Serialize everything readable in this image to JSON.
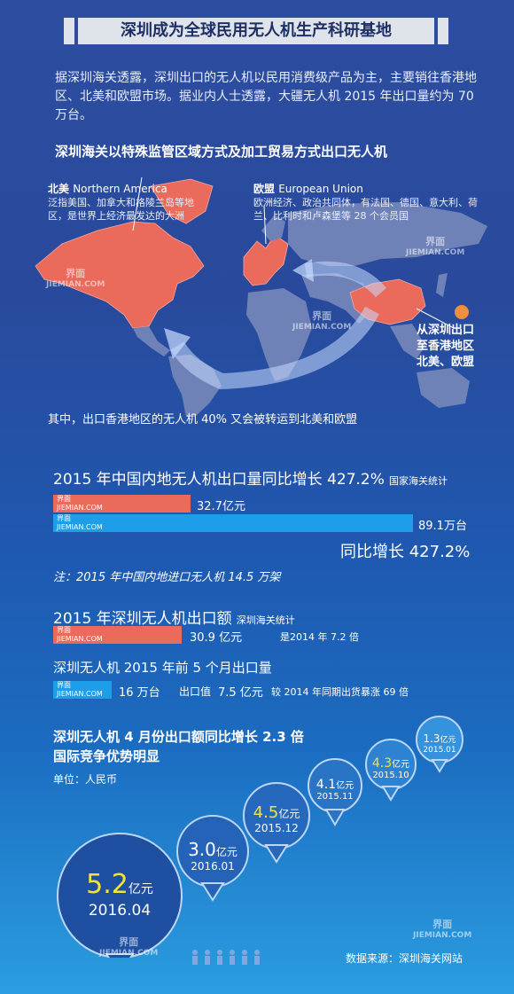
{
  "title": "深圳成为全球民用无人机生产科研基地",
  "intro": "据深圳海关透露，深圳出口的无人机以民用消费级产品为主，主要销往香港地区、北美和欧盟市场。据业内人士透露，大疆无人机 2015 年出口量约为 70 万台。",
  "map": {
    "heading": "深圳海关以特殊监管区域方式及加工贸易方式出口无人机",
    "na_title": "北美",
    "na_title_en": "Northern America",
    "na_desc": "泛指美国、加拿大和格陵兰岛等地区，是世界上经济最发达的大洲",
    "eu_title": "欧盟",
    "eu_title_en": "European Union",
    "eu_desc": "欧洲经济、政治共同体，有法国、德国、意大利、荷兰、比利时和卢森堡等 28 个会员国",
    "callout_lines": [
      "从深圳出口",
      "至香港地区",
      "北美、欧盟"
    ],
    "footnote": "其中，出口香港地区的无人机 40% 又会被转运到北美和欧盟",
    "colors": {
      "highlight": "#ea6a5c",
      "land": "#6f82b8"
    }
  },
  "watermark": {
    "name": "界面",
    "domain": "JIEMIAN.COM"
  },
  "section1": {
    "heading": "2015 年中国内地无人机出口量同比增长 427.2%",
    "source": "国家海关统计",
    "bar1_value": "32.7亿元",
    "bar2_value": "89.1万台",
    "growth": "同比增长 427.2%",
    "note": "注：2015 年中国内地进口无人机 14.5 万架"
  },
  "section2": {
    "heading": "2015 年深圳无人机出口额",
    "source": "深圳海关统计",
    "bar_value": "30.9 亿元",
    "bar_note": "是2014 年 7.2 倍",
    "sub_heading": "深圳无人机 2015 年前 5 个月出口量",
    "units": "16 万台",
    "export_label": "出口值",
    "export_value": "7.5 亿元",
    "compare": "较 2014 年同期出货暴涨 69 倍"
  },
  "section3": {
    "heading_line1": "深圳无人机 4 月份出口额同比增长 2.3 倍",
    "heading_line2": "国际竞争优势明显",
    "unit": "单位：人民币",
    "bubbles": [
      {
        "value": "5.2",
        "unit": "亿元",
        "date": "2016.04"
      },
      {
        "value": "3.0",
        "unit": "亿元",
        "date": "2016.01"
      },
      {
        "value": "4.5",
        "unit": "亿元",
        "date": "2015.12"
      },
      {
        "value": "4.1",
        "unit": "亿元",
        "date": "2015.11"
      },
      {
        "value": "4.3",
        "unit": "亿元",
        "date": "2015.10"
      },
      {
        "value": "1.3",
        "unit": "亿元",
        "date": "2015.01"
      }
    ]
  },
  "footer": {
    "source": "数据来源：深圳海关网站"
  }
}
